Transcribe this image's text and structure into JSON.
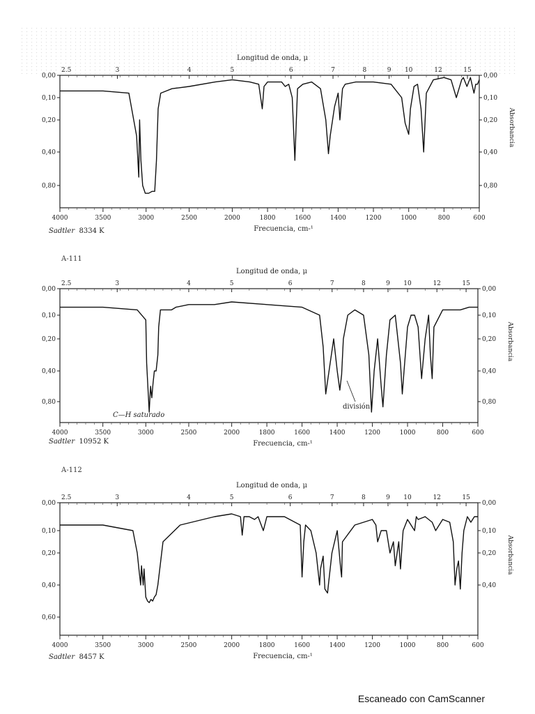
{
  "chart_data": [
    {
      "type": "line",
      "x_axis_label": "Frecuencia, cm-¹",
      "top_axis_label": "Longitud de onda, μ",
      "right_axis_label": "Absorbancia",
      "x_range": [
        4000,
        600
      ],
      "x_ticks": [
        "4000",
        "3500",
        "3000",
        "2500",
        "2000",
        "1800",
        "1600",
        "1400",
        "1200",
        "1000",
        "800",
        "600"
      ],
      "top_ticks": [
        "2.5",
        "3",
        "4",
        "5",
        "6",
        "7",
        "8",
        "9",
        "10",
        "12",
        "15"
      ],
      "y_ticks_left": [
        "0,00",
        "0,10",
        "0,20",
        "0,40",
        "0,80"
      ],
      "y_ticks_right": [
        "0,00",
        "0,10",
        "0,20",
        "0,40",
        "0,80"
      ],
      "sadtler_label": "Sadtler",
      "sadtler_number": "8334 K",
      "code": "",
      "annotations": [],
      "series": [
        {
          "x": [
            4000,
            3500,
            3200,
            3110,
            3085,
            3075,
            3060,
            3040,
            3010,
            2990,
            2970,
            2950,
            2930,
            2900,
            2880,
            2860,
            2830,
            2700,
            2500,
            2200,
            2000,
            1900,
            1850,
            1830,
            1820,
            1800,
            1760,
            1720,
            1700,
            1680,
            1660,
            1645,
            1630,
            1600,
            1550,
            1500,
            1470,
            1455,
            1445,
            1420,
            1400,
            1390,
            1375,
            1360,
            1300,
            1200,
            1100,
            1040,
            1020,
            1000,
            990,
            970,
            950,
            930,
            915,
            900,
            860,
            800,
            760,
            730,
            700,
            690,
            670,
            650,
            630,
            620,
            610,
            600
          ],
          "y": [
            0.07,
            0.07,
            0.08,
            0.3,
            0.7,
            0.2,
            0.5,
            0.8,
            0.88,
            0.88,
            0.88,
            0.87,
            0.86,
            0.86,
            0.5,
            0.15,
            0.08,
            0.06,
            0.05,
            0.03,
            0.02,
            0.03,
            0.04,
            0.15,
            0.05,
            0.03,
            0.03,
            0.03,
            0.05,
            0.04,
            0.1,
            0.5,
            0.06,
            0.04,
            0.03,
            0.06,
            0.2,
            0.42,
            0.3,
            0.14,
            0.08,
            0.2,
            0.06,
            0.04,
            0.03,
            0.03,
            0.04,
            0.1,
            0.22,
            0.29,
            0.15,
            0.05,
            0.04,
            0.15,
            0.4,
            0.08,
            0.02,
            0.01,
            0.02,
            0.1,
            0.02,
            0.01,
            0.05,
            0.01,
            0.08,
            0.04,
            0.04,
            0.02
          ]
        }
      ]
    },
    {
      "type": "line",
      "x_axis_label": "Frecuencia, cm-¹",
      "top_axis_label": "Longitud de onda, μ",
      "right_axis_label": "Absorbancia",
      "x_range": [
        4000,
        600
      ],
      "x_ticks": [
        "4000",
        "3500",
        "3000",
        "2500",
        "2000",
        "1800",
        "1600",
        "1400",
        "1200",
        "1000",
        "800",
        "600"
      ],
      "top_ticks": [
        "2.5",
        "3",
        "4",
        "5",
        "6",
        "7",
        "8",
        "9",
        "10",
        "12",
        "15"
      ],
      "y_ticks_left": [
        "0,00",
        "0,10",
        "0,20",
        "0,40",
        "0,80"
      ],
      "y_ticks_right": [
        "0,00",
        "0,10",
        "0,20",
        "0,40",
        "0,80"
      ],
      "sadtler_label": "Sadtler",
      "sadtler_number": "10952 K",
      "code": "A-111",
      "annotations": [
        "C—H saturado",
        "división"
      ],
      "series": [
        {
          "x": [
            4000,
            3500,
            3100,
            3000,
            2990,
            2960,
            2945,
            2930,
            2915,
            2900,
            2880,
            2860,
            2850,
            2830,
            2700,
            2650,
            2500,
            2200,
            2000,
            1800,
            1600,
            1500,
            1480,
            1465,
            1440,
            1420,
            1400,
            1385,
            1375,
            1365,
            1340,
            1300,
            1250,
            1220,
            1205,
            1190,
            1170,
            1150,
            1140,
            1120,
            1100,
            1070,
            1040,
            1030,
            1020,
            1000,
            980,
            960,
            940,
            920,
            900,
            880,
            870,
            860,
            850,
            800,
            700,
            650,
            600
          ],
          "y": [
            0.07,
            0.07,
            0.08,
            0.12,
            0.35,
            0.9,
            0.6,
            0.75,
            0.55,
            0.4,
            0.4,
            0.3,
            0.15,
            0.08,
            0.08,
            0.07,
            0.06,
            0.06,
            0.05,
            0.06,
            0.07,
            0.1,
            0.25,
            0.7,
            0.35,
            0.2,
            0.4,
            0.65,
            0.45,
            0.2,
            0.1,
            0.08,
            0.1,
            0.3,
            0.9,
            0.4,
            0.2,
            0.6,
            0.85,
            0.3,
            0.12,
            0.1,
            0.35,
            0.7,
            0.4,
            0.15,
            0.1,
            0.1,
            0.15,
            0.5,
            0.2,
            0.1,
            0.3,
            0.5,
            0.15,
            0.08,
            0.08,
            0.07,
            0.07
          ]
        }
      ]
    },
    {
      "type": "line",
      "x_axis_label": "Frecuencia, cm-¹",
      "top_axis_label": "Longitud de onda, μ",
      "right_axis_label": "Absorbancia",
      "x_range": [
        4000,
        600
      ],
      "x_ticks": [
        "4000",
        "3500",
        "3000",
        "2500",
        "2000",
        "1800",
        "1600",
        "1400",
        "1200",
        "1000",
        "800",
        "600"
      ],
      "top_ticks": [
        "2.5",
        "3",
        "4",
        "5",
        "6",
        "7",
        "8",
        "9",
        "10",
        "12",
        "15"
      ],
      "y_ticks_left": [
        "0,00",
        "0,10",
        "0,20",
        "0,40",
        "0,60"
      ],
      "y_ticks_right": [
        "0,00",
        "0,10",
        "0,20",
        "0,40"
      ],
      "sadtler_label": "Sadtler",
      "sadtler_number": "8457 K",
      "code": "A-112",
      "annotations": [],
      "series": [
        {
          "x": [
            4000,
            3500,
            3150,
            3100,
            3080,
            3060,
            3050,
            3030,
            3020,
            3000,
            2980,
            2960,
            2940,
            2920,
            2900,
            2880,
            2860,
            2800,
            2600,
            2200,
            2000,
            1950,
            1940,
            1930,
            1900,
            1870,
            1850,
            1820,
            1800,
            1700,
            1610,
            1600,
            1590,
            1580,
            1550,
            1520,
            1500,
            1495,
            1480,
            1470,
            1455,
            1450,
            1430,
            1400,
            1380,
            1375,
            1370,
            1300,
            1200,
            1180,
            1170,
            1150,
            1120,
            1100,
            1080,
            1070,
            1050,
            1040,
            1030,
            1025,
            1000,
            960,
            950,
            940,
            900,
            860,
            840,
            800,
            760,
            740,
            730,
            720,
            710,
            700,
            690,
            680,
            660,
            640,
            620,
            600
          ],
          "y": [
            0.08,
            0.08,
            0.1,
            0.2,
            0.3,
            0.4,
            0.28,
            0.4,
            0.3,
            0.55,
            0.6,
            0.62,
            0.58,
            0.6,
            0.55,
            0.52,
            0.4,
            0.15,
            0.08,
            0.05,
            0.04,
            0.05,
            0.12,
            0.05,
            0.05,
            0.06,
            0.05,
            0.1,
            0.05,
            0.05,
            0.08,
            0.35,
            0.15,
            0.08,
            0.1,
            0.2,
            0.4,
            0.3,
            0.22,
            0.45,
            0.5,
            0.4,
            0.2,
            0.1,
            0.3,
            0.35,
            0.15,
            0.08,
            0.06,
            0.08,
            0.15,
            0.1,
            0.1,
            0.2,
            0.15,
            0.28,
            0.15,
            0.3,
            0.15,
            0.1,
            0.06,
            0.1,
            0.05,
            0.06,
            0.05,
            0.07,
            0.1,
            0.06,
            0.07,
            0.15,
            0.4,
            0.3,
            0.25,
            0.45,
            0.2,
            0.1,
            0.05,
            0.07,
            0.05,
            0.05
          ]
        }
      ]
    }
  ],
  "footer": "Escaneado con CamScanner"
}
